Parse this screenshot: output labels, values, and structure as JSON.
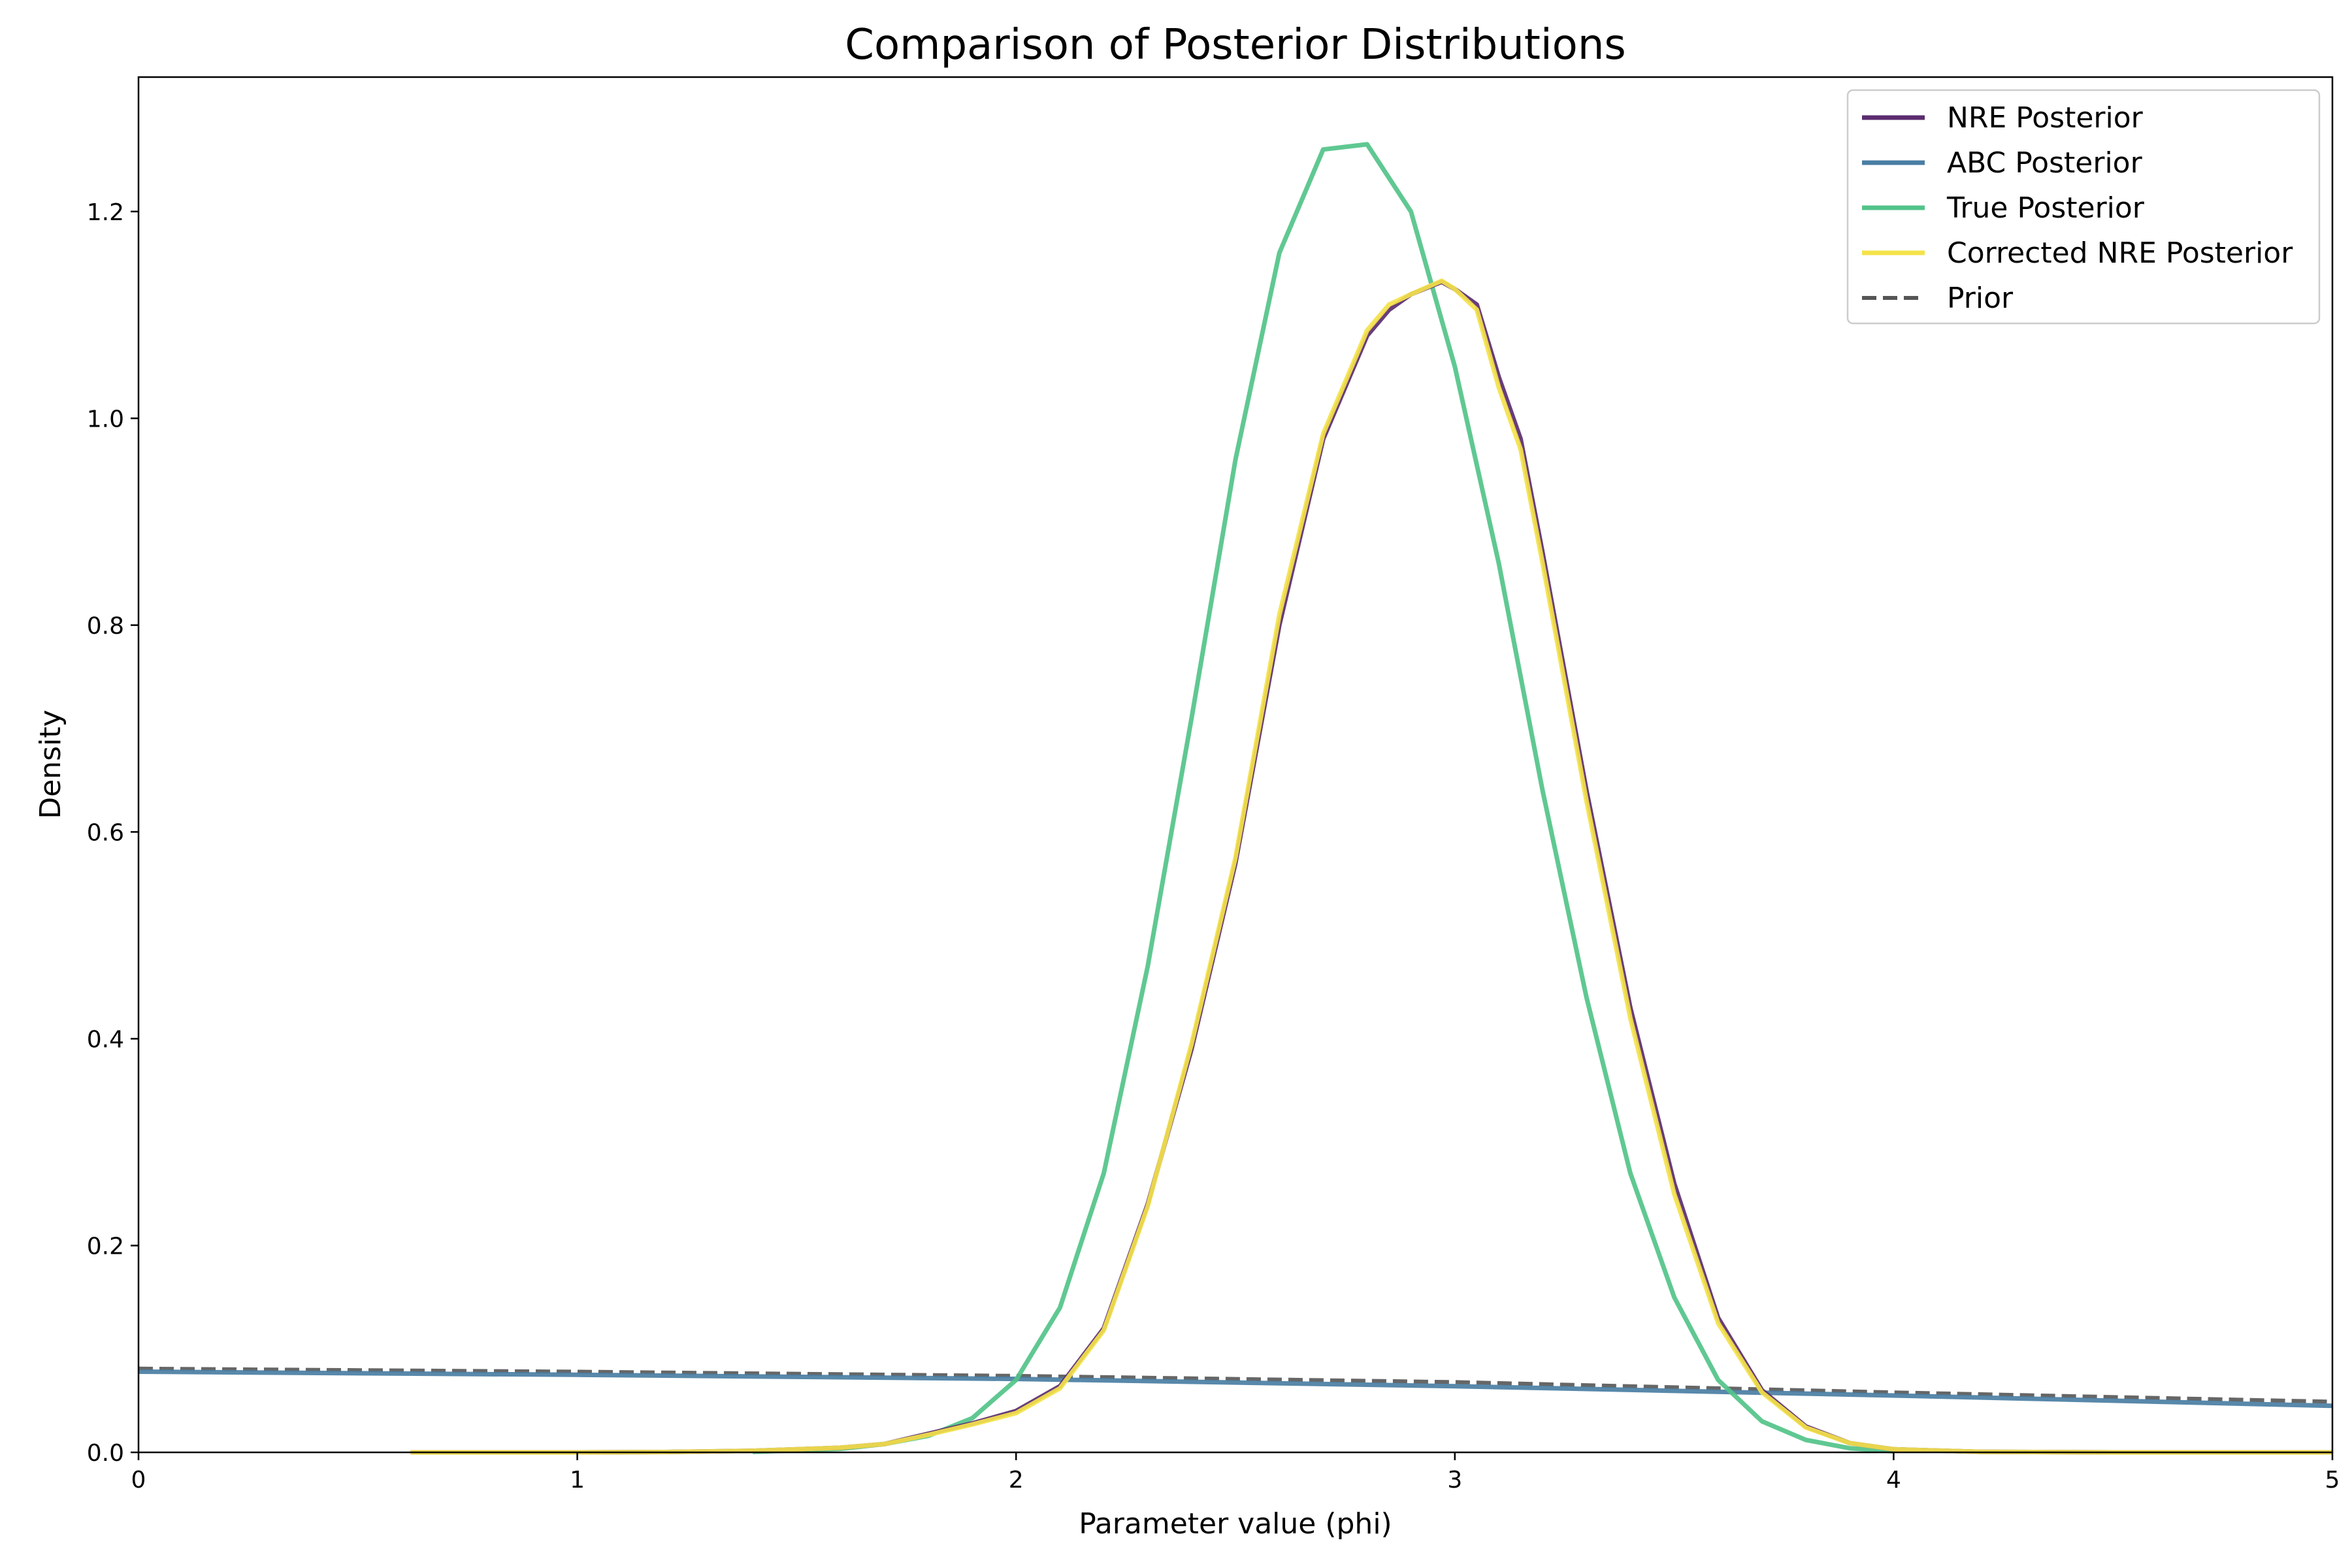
{
  "chart_data": {
    "type": "line",
    "title": "Comparison of Posterior Distributions",
    "xlabel": "Parameter value (phi)",
    "ylabel": "Density",
    "xlim": [
      0,
      5
    ],
    "ylim": [
      0,
      1.33
    ],
    "xticks": [
      0,
      1,
      2,
      3,
      4,
      5
    ],
    "xtick_labels": [
      "0",
      "1",
      "2",
      "3",
      "4",
      "5"
    ],
    "yticks": [
      0.0,
      0.2,
      0.4,
      0.6,
      0.8,
      1.0,
      1.2
    ],
    "ytick_labels": [
      "0.0",
      "0.2",
      "0.4",
      "0.6",
      "0.8",
      "1.0",
      "1.2"
    ],
    "grid": false,
    "legend_position": "top-right",
    "series": [
      {
        "name": "NRE Posterior",
        "color": "#5b2c6f",
        "dash": "solid",
        "x": [
          0.62,
          1.0,
          1.2,
          1.4,
          1.6,
          1.7,
          1.8,
          1.9,
          2.0,
          2.1,
          2.2,
          2.3,
          2.4,
          2.5,
          2.6,
          2.7,
          2.8,
          2.85,
          2.9,
          2.97,
          3.0,
          3.05,
          3.1,
          3.15,
          3.2,
          3.3,
          3.4,
          3.5,
          3.6,
          3.7,
          3.8,
          3.9,
          4.0,
          4.2,
          4.5,
          5.0
        ],
        "y": [
          0.0,
          0.0,
          0.0003,
          0.0015,
          0.0045,
          0.008,
          0.018,
          0.028,
          0.04,
          0.064,
          0.12,
          0.24,
          0.39,
          0.57,
          0.8,
          0.98,
          1.08,
          1.105,
          1.12,
          1.132,
          1.125,
          1.11,
          1.04,
          0.98,
          0.87,
          0.64,
          0.43,
          0.26,
          0.13,
          0.06,
          0.025,
          0.009,
          0.003,
          0.0005,
          0.0,
          0.0
        ]
      },
      {
        "name": "ABC Posterior",
        "color": "#4a7ea3",
        "dash": "solid",
        "x": [
          0,
          1,
          2,
          3,
          4,
          5
        ],
        "y": [
          0.078,
          0.075,
          0.071,
          0.064,
          0.055,
          0.045
        ]
      },
      {
        "name": "True Posterior",
        "color": "#52c389",
        "dash": "solid",
        "x": [
          1.4,
          1.6,
          1.7,
          1.8,
          1.9,
          2.0,
          2.1,
          2.2,
          2.3,
          2.4,
          2.5,
          2.6,
          2.7,
          2.8,
          2.9,
          3.0,
          3.1,
          3.2,
          3.3,
          3.4,
          3.5,
          3.6,
          3.7,
          3.8,
          3.9,
          4.0
        ],
        "y": [
          0.0005,
          0.0035,
          0.008,
          0.016,
          0.033,
          0.07,
          0.14,
          0.27,
          0.47,
          0.71,
          0.96,
          1.16,
          1.26,
          1.265,
          1.2,
          1.05,
          0.86,
          0.64,
          0.44,
          0.27,
          0.15,
          0.07,
          0.03,
          0.012,
          0.004,
          0.001
        ]
      },
      {
        "name": "Corrected NRE Posterior",
        "color": "#f4e24a",
        "dash": "solid",
        "x": [
          0.62,
          1.0,
          1.2,
          1.4,
          1.6,
          1.7,
          1.8,
          1.9,
          2.0,
          2.1,
          2.2,
          2.3,
          2.4,
          2.5,
          2.6,
          2.7,
          2.8,
          2.85,
          2.9,
          2.97,
          3.0,
          3.05,
          3.1,
          3.15,
          3.2,
          3.3,
          3.4,
          3.5,
          3.6,
          3.7,
          3.8,
          3.9,
          4.0,
          4.2,
          4.5,
          5.0
        ],
        "y": [
          0.0,
          0.0,
          0.0003,
          0.0015,
          0.0045,
          0.008,
          0.017,
          0.027,
          0.038,
          0.062,
          0.118,
          0.238,
          0.395,
          0.575,
          0.81,
          0.985,
          1.085,
          1.11,
          1.12,
          1.133,
          1.125,
          1.105,
          1.03,
          0.97,
          0.86,
          0.63,
          0.42,
          0.25,
          0.125,
          0.058,
          0.024,
          0.009,
          0.003,
          0.0005,
          0.0,
          0.0
        ]
      },
      {
        "name": "Prior",
        "color": "#555555",
        "dash": "dashed",
        "x": [
          0,
          1,
          2,
          3,
          4,
          5
        ],
        "y": [
          0.081,
          0.078,
          0.074,
          0.068,
          0.058,
          0.049
        ]
      }
    ]
  }
}
